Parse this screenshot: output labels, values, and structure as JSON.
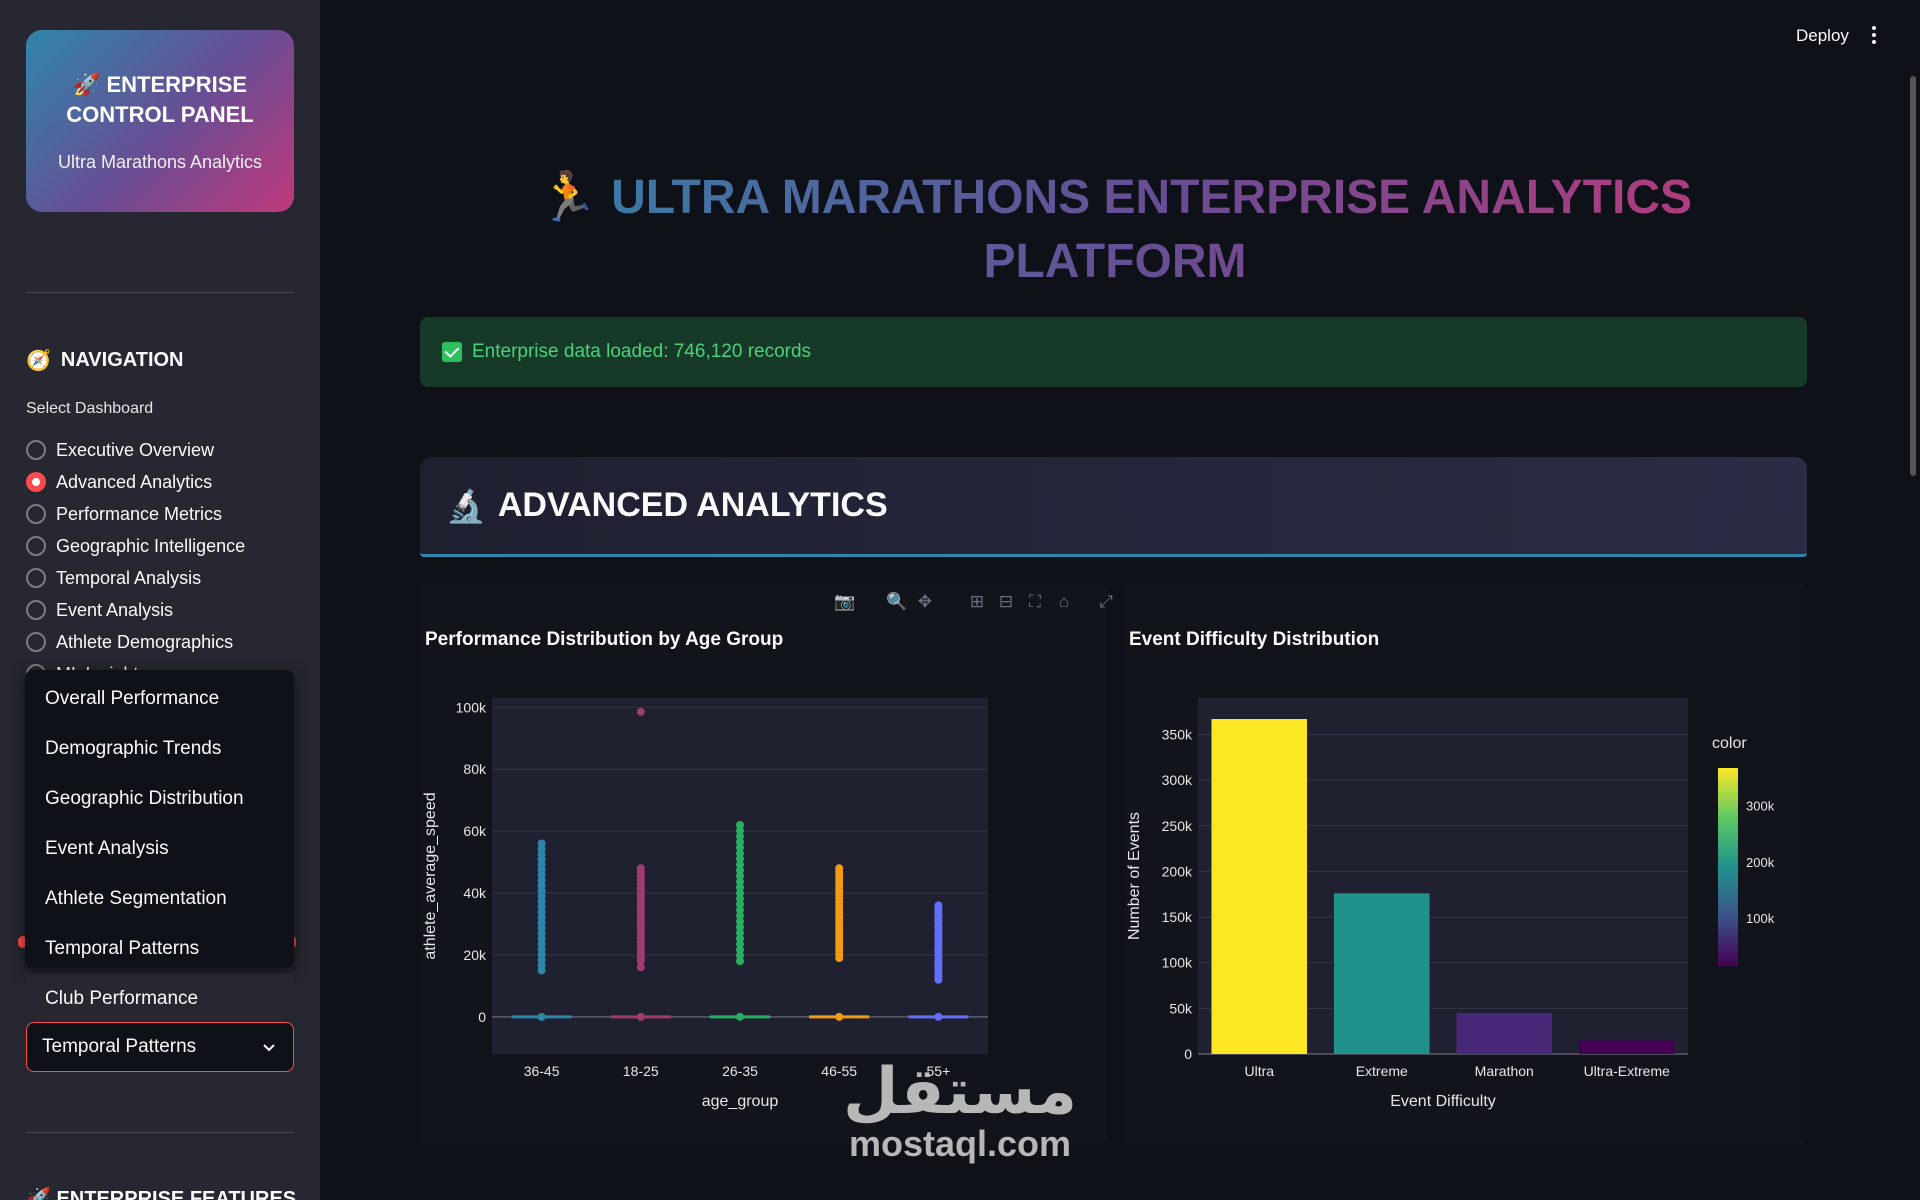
{
  "sidebar": {
    "brand_icon": "🚀",
    "brand_title": "ENTERPRISE CONTROL PANEL",
    "brand_subtitle": "Ultra Marathons Analytics",
    "nav_icon": "🧭",
    "nav_heading": "NAVIGATION",
    "select_label": "Select Dashboard",
    "radio_items": [
      {
        "label": "Executive Overview",
        "checked": false
      },
      {
        "label": "Advanced Analytics",
        "checked": true
      },
      {
        "label": "Performance Metrics",
        "checked": false
      },
      {
        "label": "Geographic Intelligence",
        "checked": false
      },
      {
        "label": "Temporal Analysis",
        "checked": false
      },
      {
        "label": "Event Analysis",
        "checked": false
      },
      {
        "label": "Athlete Demographics",
        "checked": false
      },
      {
        "label": "ML Insights",
        "checked": false
      }
    ],
    "dropdown_options": [
      "Overall Performance",
      "Demographic Trends",
      "Geographic Distribution",
      "Event Analysis",
      "Athlete Segmentation",
      "Temporal Patterns",
      "Club Performance"
    ],
    "dropdown_selected": "Temporal Patterns",
    "features_heading": "🚀 ENTERPRISE FEATURES"
  },
  "header": {
    "deploy_label": "Deploy",
    "menu_icon": "kebab-menu-icon"
  },
  "main": {
    "title_icon": "🏃",
    "title": "ULTRA MARATHONS ENTERPRISE ANALYTICS PLATFORM",
    "success_message": "Enterprise data loaded: 746,120 records",
    "section_icon": "🔬",
    "section_title": "ADVANCED ANALYTICS"
  },
  "watermark": {
    "arabic": "مستقل",
    "latin": "mostaql.com"
  },
  "chart_data": [
    {
      "type": "scatter",
      "title": "Performance Distribution by Age Group",
      "xlabel": "age_group",
      "ylabel": "athlete_average_speed",
      "categories": [
        "36-45",
        "18-25",
        "26-35",
        "46-55",
        "55+"
      ],
      "colors": [
        "#2e86ab",
        "#a23b72",
        "#27ae60",
        "#f39c12",
        "#636efa"
      ],
      "ylim": [
        -12000,
        103000
      ],
      "yticks": [
        0,
        20000,
        40000,
        60000,
        80000,
        100000
      ],
      "ytick_labels": [
        "0",
        "20k",
        "40k",
        "60k",
        "80k",
        "100k"
      ],
      "series": [
        {
          "name": "36-45",
          "range": [
            15000,
            56000
          ],
          "outliers": [],
          "baseline": 0
        },
        {
          "name": "18-25",
          "range": [
            18000,
            48000
          ],
          "outliers": [
            16000,
            98500
          ],
          "baseline": 0
        },
        {
          "name": "26-35",
          "range": [
            18000,
            62000
          ],
          "outliers": [],
          "baseline": 0
        },
        {
          "name": "46-55",
          "range": [
            19000,
            48000
          ],
          "outliers": [],
          "baseline": 0
        },
        {
          "name": "55+",
          "range": [
            12000,
            36000
          ],
          "outliers": [],
          "baseline": 0
        }
      ]
    },
    {
      "type": "bar",
      "title": "Event Difficulty Distribution",
      "xlabel": "Event Difficulty",
      "ylabel": "Number of Events",
      "categories": [
        "Ultra",
        "Extreme",
        "Marathon",
        "Ultra-Extreme"
      ],
      "values": [
        367000,
        176000,
        45000,
        15000
      ],
      "bar_colors": [
        "#fde725",
        "#21918c",
        "#482878",
        "#440154"
      ],
      "ylim": [
        0,
        390000
      ],
      "yticks": [
        0,
        50000,
        100000,
        150000,
        200000,
        250000,
        300000,
        350000
      ],
      "ytick_labels": [
        "0",
        "50k",
        "100k",
        "150k",
        "200k",
        "250k",
        "300k",
        "350k"
      ],
      "colorbar": {
        "title": "color",
        "ticks": [
          "300k",
          "200k",
          "100k"
        ],
        "tick_values": [
          300000,
          200000,
          100000
        ],
        "range": [
          15000,
          367000
        ]
      }
    }
  ]
}
